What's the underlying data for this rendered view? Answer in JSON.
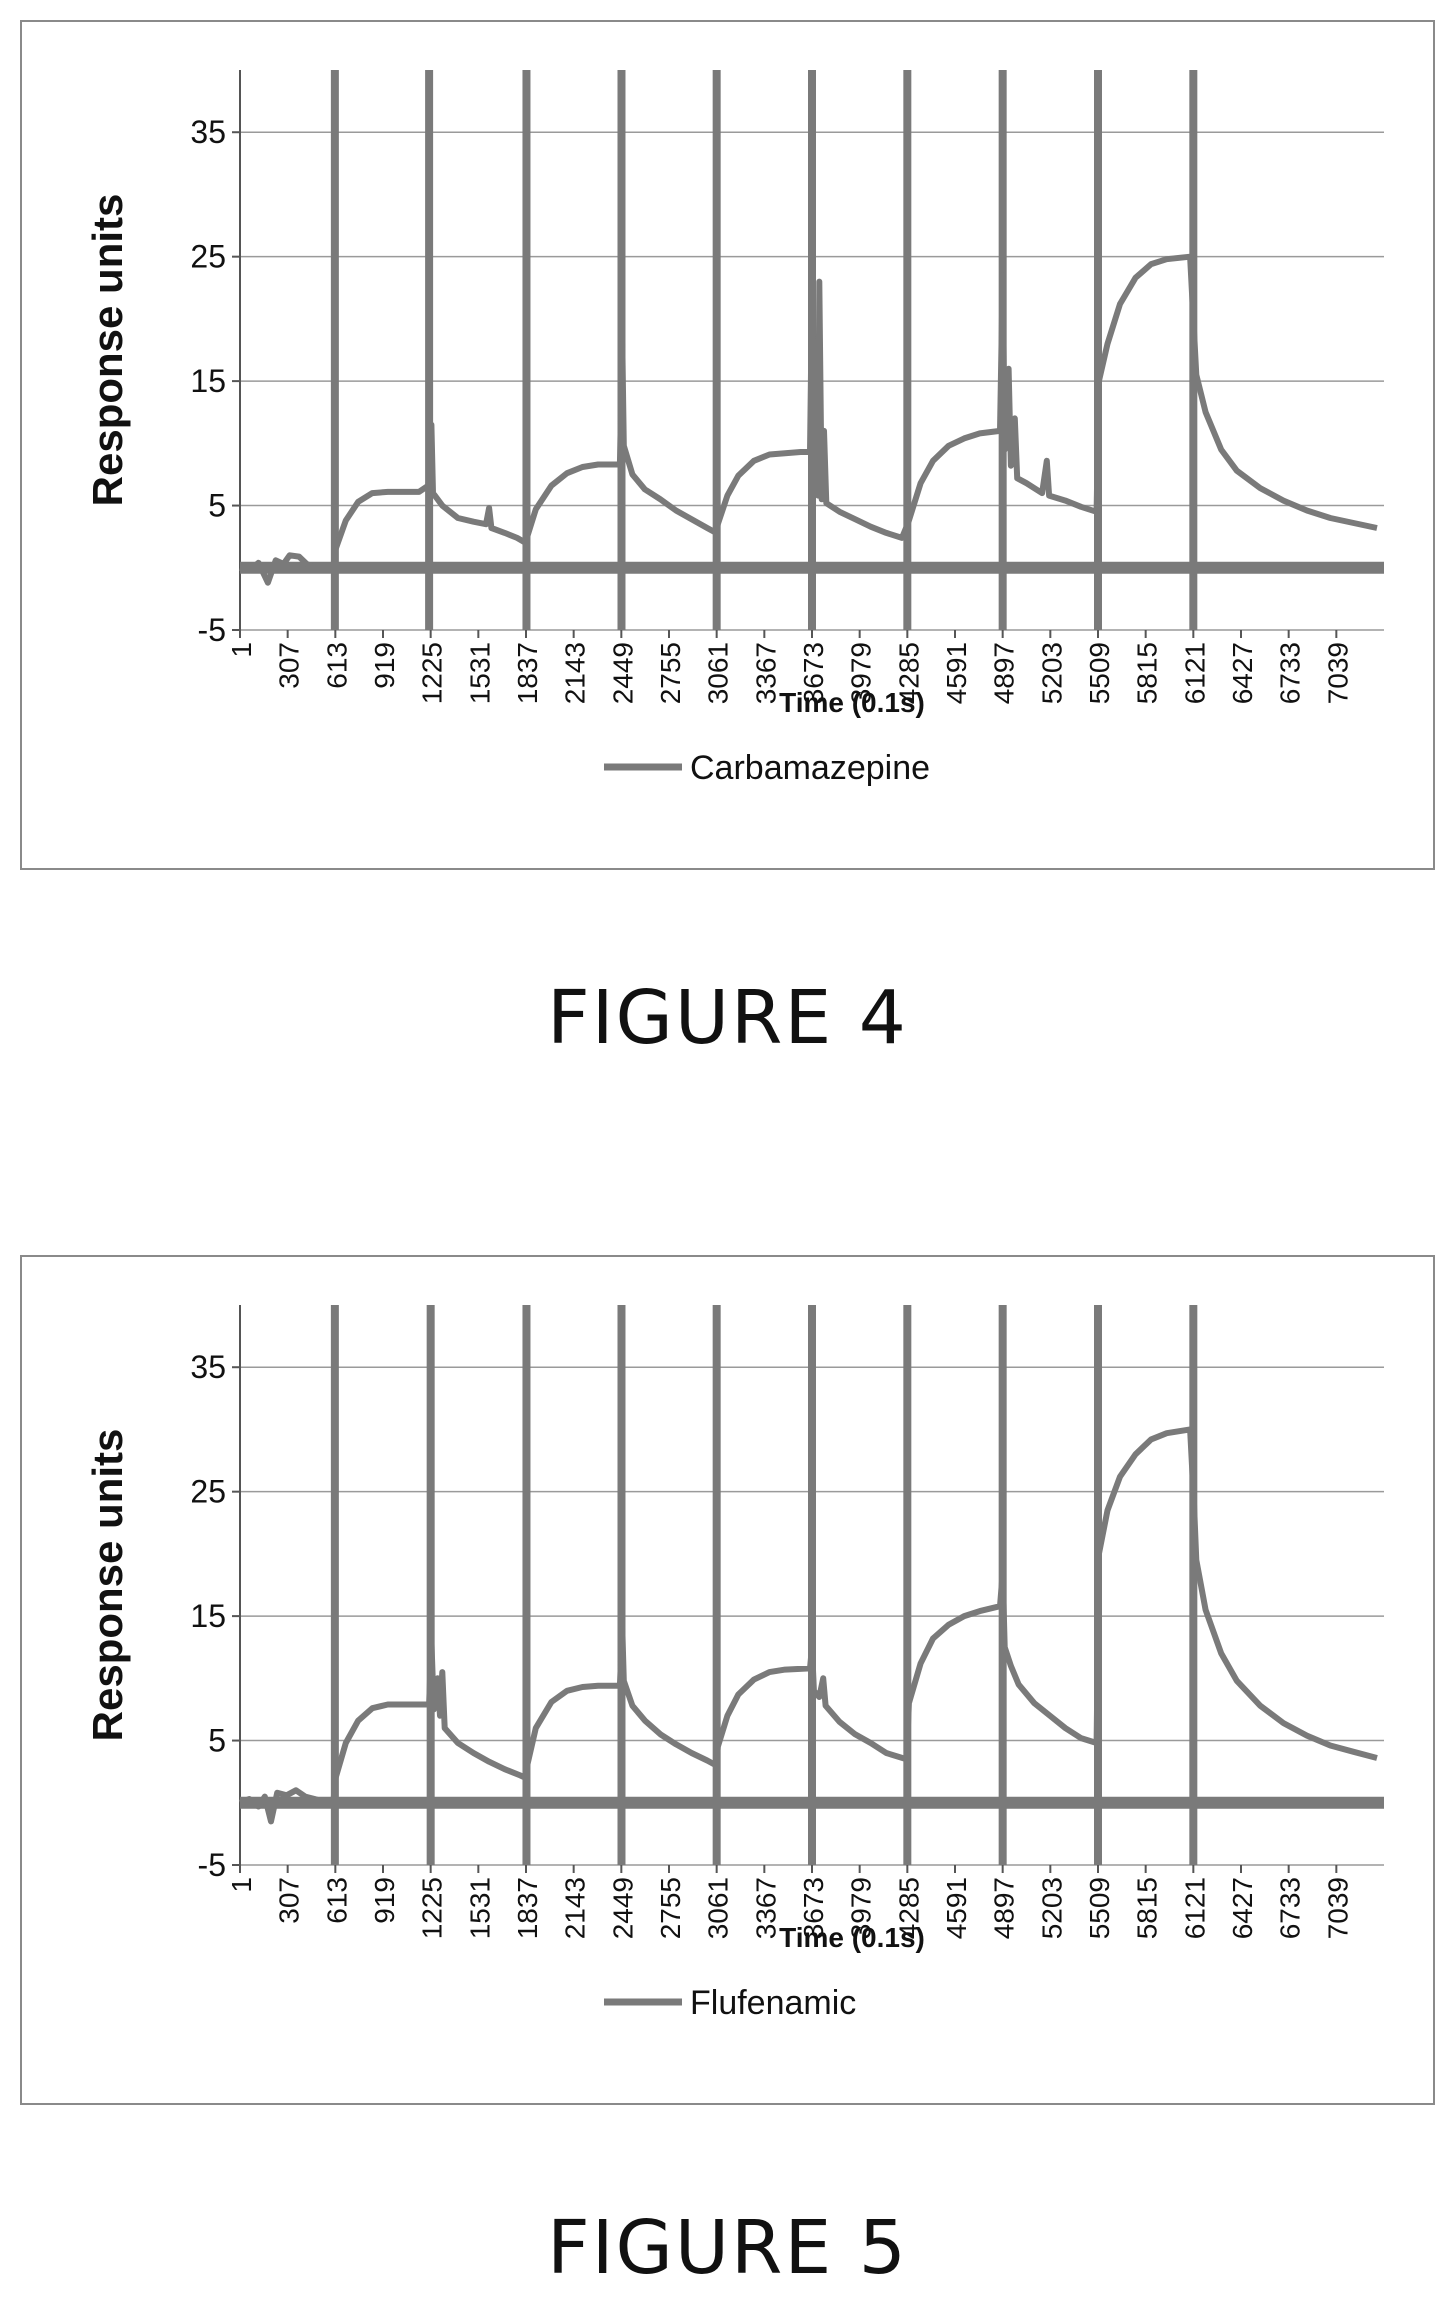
{
  "chart_data": [
    {
      "type": "line",
      "figure_label": "FIGURE 4",
      "xlabel": "Time (0.1s)",
      "ylabel": "Response units",
      "x_ticks": [
        "1",
        "307",
        "613",
        "919",
        "1225",
        "1531",
        "1837",
        "2143",
        "2449",
        "2755",
        "3061",
        "3367",
        "3673",
        "3979",
        "4285",
        "4591",
        "4897",
        "5203",
        "5509",
        "5815",
        "6121",
        "6427",
        "6733",
        "7039"
      ],
      "xlim": [
        1,
        7345
      ],
      "ylim": [
        -5,
        40
      ],
      "y_ticks": [
        -5,
        5,
        15,
        25,
        35
      ],
      "grid": "horizontal",
      "legend": "bottom",
      "vertical_markers": [
        610,
        1215,
        1840,
        2450,
        3061,
        3673,
        4285,
        4897,
        5509,
        6121
      ],
      "baseline": 0,
      "series": [
        {
          "name": "Carbamazepine",
          "color": "#7a7a7a",
          "points": [
            [
              1,
              0
            ],
            [
              60,
              -0.2
            ],
            [
              120,
              0.4
            ],
            [
              180,
              -1.2
            ],
            [
              230,
              0.6
            ],
            [
              280,
              0.3
            ],
            [
              320,
              1.0
            ],
            [
              380,
              0.9
            ],
            [
              430,
              0.3
            ],
            [
              480,
              0
            ],
            [
              560,
              0
            ],
            [
              600,
              0
            ],
            [
              615,
              1.5
            ],
            [
              680,
              3.8
            ],
            [
              760,
              5.3
            ],
            [
              850,
              6.0
            ],
            [
              950,
              6.1
            ],
            [
              1050,
              6.1
            ],
            [
              1150,
              6.1
            ],
            [
              1210,
              6.6
            ],
            [
              1230,
              11.5
            ],
            [
              1240,
              6.0
            ],
            [
              1300,
              5.0
            ],
            [
              1400,
              4.0
            ],
            [
              1500,
              3.7
            ],
            [
              1580,
              3.5
            ],
            [
              1600,
              4.8
            ],
            [
              1615,
              3.2
            ],
            [
              1700,
              2.8
            ],
            [
              1780,
              2.4
            ],
            [
              1835,
              2.0
            ],
            [
              1845,
              2.5
            ],
            [
              1900,
              4.7
            ],
            [
              2000,
              6.6
            ],
            [
              2100,
              7.6
            ],
            [
              2200,
              8.1
            ],
            [
              2300,
              8.3
            ],
            [
              2440,
              8.3
            ],
            [
              2455,
              18.0
            ],
            [
              2465,
              9.8
            ],
            [
              2520,
              7.5
            ],
            [
              2600,
              6.3
            ],
            [
              2700,
              5.5
            ],
            [
              2800,
              4.6
            ],
            [
              2900,
              3.9
            ],
            [
              3000,
              3.2
            ],
            [
              3058,
              2.8
            ],
            [
              3068,
              3.5
            ],
            [
              3130,
              5.8
            ],
            [
              3200,
              7.4
            ],
            [
              3300,
              8.6
            ],
            [
              3400,
              9.1
            ],
            [
              3500,
              9.2
            ],
            [
              3600,
              9.3
            ],
            [
              3660,
              9.3
            ],
            [
              3673,
              22.0
            ],
            [
              3685,
              7.8
            ],
            [
              3700,
              12.0
            ],
            [
              3712,
              5.8
            ],
            [
              3720,
              23.0
            ],
            [
              3735,
              5.5
            ],
            [
              3750,
              11.0
            ],
            [
              3765,
              5.2
            ],
            [
              3850,
              4.5
            ],
            [
              3950,
              3.9
            ],
            [
              4050,
              3.3
            ],
            [
              4150,
              2.8
            ],
            [
              4250,
              2.4
            ],
            [
              4280,
              3.3
            ],
            [
              4295,
              3.8
            ],
            [
              4370,
              6.8
            ],
            [
              4450,
              8.6
            ],
            [
              4550,
              9.8
            ],
            [
              4650,
              10.4
            ],
            [
              4750,
              10.8
            ],
            [
              4880,
              11.0
            ],
            [
              4897,
              23.5
            ],
            [
              4910,
              9.5
            ],
            [
              4935,
              16.0
            ],
            [
              4950,
              8.2
            ],
            [
              4975,
              12.0
            ],
            [
              4990,
              7.2
            ],
            [
              5050,
              6.8
            ],
            [
              5150,
              6.0
            ],
            [
              5180,
              8.6
            ],
            [
              5195,
              5.8
            ],
            [
              5300,
              5.4
            ],
            [
              5400,
              4.9
            ],
            [
              5500,
              4.5
            ],
            [
              5515,
              15.0
            ],
            [
              5570,
              18.0
            ],
            [
              5650,
              21.2
            ],
            [
              5750,
              23.3
            ],
            [
              5850,
              24.4
            ],
            [
              5950,
              24.8
            ],
            [
              6100,
              25.0
            ],
            [
              6125,
              19.0
            ],
            [
              6140,
              15.5
            ],
            [
              6200,
              12.5
            ],
            [
              6300,
              9.5
            ],
            [
              6400,
              7.8
            ],
            [
              6550,
              6.4
            ],
            [
              6700,
              5.4
            ],
            [
              6850,
              4.6
            ],
            [
              7000,
              4.0
            ],
            [
              7150,
              3.6
            ],
            [
              7300,
              3.2
            ]
          ]
        }
      ]
    },
    {
      "type": "line",
      "figure_label": "FIGURE 5",
      "xlabel": "Time (0.1s)",
      "ylabel": "Response units",
      "x_ticks": [
        "1",
        "307",
        "613",
        "919",
        "1225",
        "1531",
        "1837",
        "2143",
        "2449",
        "2755",
        "3061",
        "3367",
        "3673",
        "3979",
        "4285",
        "4591",
        "4897",
        "5203",
        "5509",
        "5815",
        "6121",
        "6427",
        "6733",
        "7039"
      ],
      "xlim": [
        1,
        7345
      ],
      "ylim": [
        -5,
        40
      ],
      "y_ticks": [
        -5,
        5,
        15,
        25,
        35
      ],
      "grid": "horizontal",
      "legend": "bottom",
      "vertical_markers": [
        610,
        1225,
        1840,
        2450,
        3061,
        3673,
        4285,
        4897,
        5509,
        6121
      ],
      "baseline": 0,
      "series": [
        {
          "name": "Flufenamic",
          "color": "#7a7a7a",
          "points": [
            [
              1,
              0
            ],
            [
              60,
              0.3
            ],
            [
              120,
              -0.3
            ],
            [
              160,
              0.5
            ],
            [
              200,
              -1.5
            ],
            [
              240,
              0.8
            ],
            [
              300,
              0.6
            ],
            [
              360,
              1.0
            ],
            [
              420,
              0.5
            ],
            [
              480,
              0.3
            ],
            [
              560,
              0
            ],
            [
              600,
              0
            ],
            [
              615,
              2.0
            ],
            [
              680,
              4.8
            ],
            [
              760,
              6.6
            ],
            [
              850,
              7.6
            ],
            [
              950,
              7.9
            ],
            [
              1050,
              7.9
            ],
            [
              1150,
              7.9
            ],
            [
              1215,
              7.9
            ],
            [
              1230,
              13.0
            ],
            [
              1245,
              7.5
            ],
            [
              1270,
              10.0
            ],
            [
              1285,
              7.0
            ],
            [
              1300,
              10.5
            ],
            [
              1315,
              6.0
            ],
            [
              1400,
              4.8
            ],
            [
              1500,
              4.0
            ],
            [
              1600,
              3.3
            ],
            [
              1700,
              2.7
            ],
            [
              1800,
              2.2
            ],
            [
              1835,
              2.0
            ],
            [
              1845,
              3.0
            ],
            [
              1900,
              6.0
            ],
            [
              2000,
              8.1
            ],
            [
              2100,
              9.0
            ],
            [
              2200,
              9.3
            ],
            [
              2300,
              9.4
            ],
            [
              2440,
              9.4
            ],
            [
              2455,
              14.0
            ],
            [
              2465,
              9.8
            ],
            [
              2520,
              7.8
            ],
            [
              2600,
              6.6
            ],
            [
              2700,
              5.5
            ],
            [
              2800,
              4.7
            ],
            [
              2900,
              4.0
            ],
            [
              3000,
              3.4
            ],
            [
              3058,
              3.0
            ],
            [
              3068,
              4.5
            ],
            [
              3130,
              7.0
            ],
            [
              3200,
              8.7
            ],
            [
              3300,
              9.9
            ],
            [
              3400,
              10.5
            ],
            [
              3500,
              10.7
            ],
            [
              3660,
              10.8
            ],
            [
              3673,
              12.5
            ],
            [
              3685,
              9.0
            ],
            [
              3720,
              8.5
            ],
            [
              3745,
              10.0
            ],
            [
              3760,
              7.8
            ],
            [
              3850,
              6.5
            ],
            [
              3950,
              5.5
            ],
            [
              4050,
              4.8
            ],
            [
              4150,
              4.0
            ],
            [
              4280,
              3.5
            ],
            [
              4295,
              8.0
            ],
            [
              4370,
              11.2
            ],
            [
              4450,
              13.2
            ],
            [
              4550,
              14.3
            ],
            [
              4650,
              15.0
            ],
            [
              4750,
              15.4
            ],
            [
              4880,
              15.8
            ],
            [
              4897,
              18.5
            ],
            [
              4910,
              12.5
            ],
            [
              4950,
              11.0
            ],
            [
              5000,
              9.5
            ],
            [
              5100,
              8.0
            ],
            [
              5200,
              7.0
            ],
            [
              5300,
              6.0
            ],
            [
              5400,
              5.2
            ],
            [
              5500,
              4.8
            ],
            [
              5515,
              20.0
            ],
            [
              5570,
              23.5
            ],
            [
              5650,
              26.2
            ],
            [
              5750,
              28.0
            ],
            [
              5850,
              29.2
            ],
            [
              5950,
              29.7
            ],
            [
              6100,
              30.0
            ],
            [
              6125,
              24.0
            ],
            [
              6140,
              19.5
            ],
            [
              6200,
              15.5
            ],
            [
              6300,
              12.0
            ],
            [
              6400,
              9.8
            ],
            [
              6550,
              7.8
            ],
            [
              6700,
              6.4
            ],
            [
              6850,
              5.4
            ],
            [
              7000,
              4.6
            ],
            [
              7150,
              4.1
            ],
            [
              7300,
              3.6
            ]
          ]
        }
      ]
    }
  ]
}
